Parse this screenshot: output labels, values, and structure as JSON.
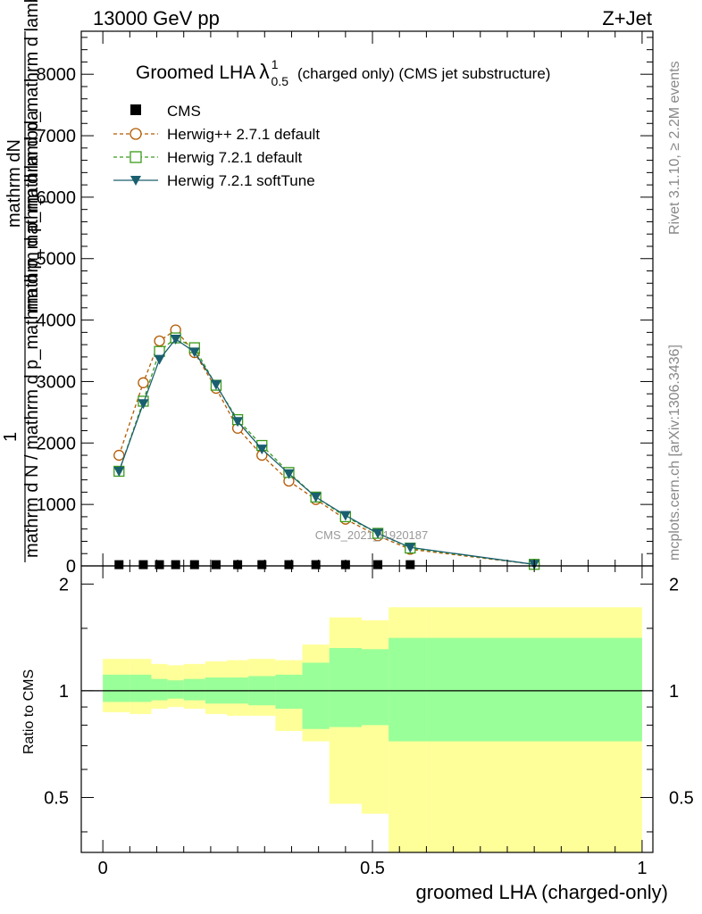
{
  "header": {
    "left": "13000 GeV pp",
    "right": "Z+Jet"
  },
  "side_labels": {
    "rivet": "Rivet 3.1.10, ≥ 2.2M events",
    "mcplots": "mcplots.cern.ch [arXiv:1306.3436]"
  },
  "watermark": "CMS_2021_I1920187",
  "chart_data": [
    {
      "type": "line",
      "title_main": "Groomed LHA",
      "title_lambda": "λ",
      "title_sup": "1",
      "title_sub": "0.5",
      "title_rest": "(charged only) (CMS jet substructure)",
      "xlabel": "groomed LHA (charged-only)",
      "ylabel": {
        "numerator_small": "mathrm dN",
        "numerator_big": "mathrm d p_mathrm d p_mathrm d lambda",
        "numerator_sub": "T",
        "numerator_one": "1",
        "denominator": "mathrm d N / mathrm d p_mathrm d p_mathrm d lambda"
      },
      "xlim": [
        -0.04,
        1.02
      ],
      "ylim": [
        0,
        8700
      ],
      "yticks": [
        0,
        1000,
        2000,
        3000,
        4000,
        5000,
        6000,
        7000,
        8000
      ],
      "ytick_labels": [
        "0",
        "1000",
        "2000",
        "3000",
        "4000",
        "5000",
        "6000",
        "7000",
        "8000"
      ],
      "legend_position": "top-left",
      "series": [
        {
          "name": "CMS",
          "color": "#000000",
          "marker": "square-filled",
          "x": [
            0.03,
            0.075,
            0.105,
            0.135,
            0.17,
            0.21,
            0.25,
            0.295,
            0.345,
            0.395,
            0.45,
            0.51,
            0.57
          ],
          "y": [
            20,
            20,
            20,
            20,
            20,
            20,
            20,
            20,
            20,
            20,
            20,
            20,
            20
          ]
        },
        {
          "name": "Herwig++ 2.7.1 default",
          "color": "#b35900",
          "marker": "circle-open",
          "dash": "4,3",
          "x": [
            0.03,
            0.075,
            0.105,
            0.135,
            0.17,
            0.21,
            0.25,
            0.295,
            0.345,
            0.395,
            0.45,
            0.51,
            0.57,
            0.8
          ],
          "y": [
            1800,
            2980,
            3660,
            3840,
            3470,
            2890,
            2240,
            1800,
            1380,
            1080,
            760,
            490,
            270,
            25
          ]
        },
        {
          "name": "Herwig 7.2.1 default",
          "color": "#3a9a1a",
          "marker": "square-open",
          "dash": "4,3",
          "x": [
            0.03,
            0.075,
            0.105,
            0.135,
            0.17,
            0.21,
            0.25,
            0.295,
            0.345,
            0.395,
            0.45,
            0.51,
            0.57,
            0.8
          ],
          "y": [
            1540,
            2680,
            3490,
            3710,
            3550,
            2940,
            2380,
            1960,
            1520,
            1120,
            800,
            530,
            290,
            25
          ]
        },
        {
          "name": "Herwig 7.2.1 softTune",
          "color": "#1a5f6f",
          "marker": "triangle-down-filled",
          "dash": "",
          "x": [
            0.03,
            0.075,
            0.105,
            0.135,
            0.17,
            0.21,
            0.25,
            0.295,
            0.345,
            0.395,
            0.45,
            0.51,
            0.57,
            0.8
          ],
          "y": [
            1540,
            2640,
            3360,
            3690,
            3480,
            2950,
            2350,
            1900,
            1500,
            1120,
            820,
            530,
            300,
            25
          ]
        }
      ]
    },
    {
      "type": "area",
      "ylabel": "Ratio to CMS",
      "xlim": [
        -0.04,
        1.02
      ],
      "ylim": [
        0.35,
        2.25
      ],
      "yticks": [
        0.5,
        1,
        2
      ],
      "ytick_labels": [
        "0.5",
        "1",
        "2"
      ],
      "xticks": [
        0,
        0.5,
        1
      ],
      "xtick_labels": [
        "0",
        "0.5",
        "1"
      ],
      "ratio_line": 1,
      "bins": [
        0,
        0.05,
        0.09,
        0.12,
        0.15,
        0.19,
        0.23,
        0.27,
        0.32,
        0.37,
        0.42,
        0.48,
        0.53,
        0.6,
        1.0
      ],
      "outer_band": {
        "color": "#ffff99",
        "low": [
          0.87,
          0.86,
          0.89,
          0.9,
          0.89,
          0.86,
          0.85,
          0.85,
          0.77,
          0.72,
          0.48,
          0.45,
          0.35,
          0.35
        ],
        "high": [
          1.23,
          1.23,
          1.19,
          1.18,
          1.19,
          1.21,
          1.22,
          1.23,
          1.22,
          1.35,
          1.61,
          1.58,
          1.72,
          1.72
        ]
      },
      "inner_band": {
        "color": "#99ff99",
        "low": [
          0.93,
          0.93,
          0.94,
          0.95,
          0.94,
          0.92,
          0.92,
          0.91,
          0.89,
          0.78,
          0.79,
          0.8,
          0.72,
          0.72
        ],
        "high": [
          1.11,
          1.11,
          1.08,
          1.07,
          1.08,
          1.09,
          1.09,
          1.1,
          1.11,
          1.2,
          1.32,
          1.31,
          1.41,
          1.41
        ]
      }
    }
  ]
}
